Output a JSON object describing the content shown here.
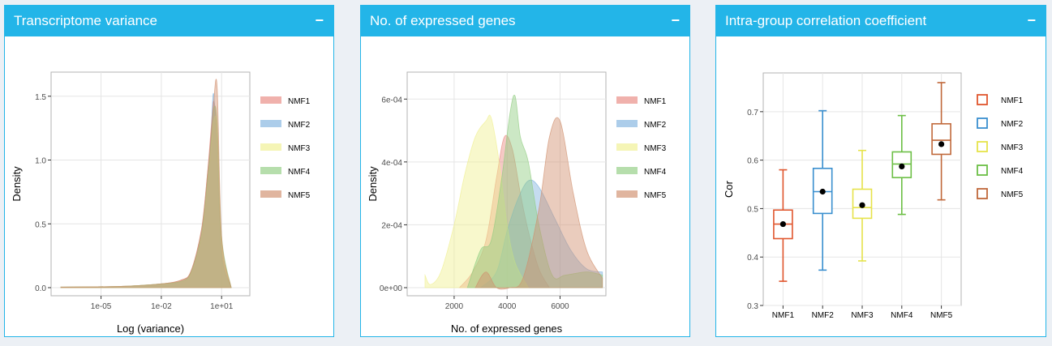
{
  "panels": [
    {
      "title": "Transcriptome variance",
      "collapse_label": "−"
    },
    {
      "title": "No. of expressed genes",
      "collapse_label": "−"
    },
    {
      "title": "Intra-group correlation coefficient",
      "collapse_label": "−"
    }
  ],
  "colors": {
    "header": "#23b5e8",
    "NMF1": "#e8877f",
    "NMF2": "#7fb2de",
    "NMF3": "#f0ef8f",
    "NMF4": "#8fcc7f",
    "NMF5": "#d08e6c",
    "box_NMF1": "#e0562e",
    "box_NMF2": "#3a8fcf",
    "box_NMF3": "#e6e34a",
    "box_NMF4": "#6cbf45",
    "box_NMF5": "#c0683a"
  },
  "chart_data": [
    {
      "type": "area",
      "xlabel": "Log (variance)",
      "ylabel": "Density",
      "x_scale": "log10",
      "xlim": [
        1e-07,
        100
      ],
      "ylim": [
        0,
        1.6
      ],
      "x_ticks": [
        "1e-05",
        "1e-02",
        "1e+01"
      ],
      "x_tick_values": [
        1e-05,
        0.01,
        10
      ],
      "y_ticks": [
        "0.0",
        "0.5",
        "1.0",
        "1.5"
      ],
      "y_tick_values": [
        0,
        0.5,
        1.0,
        1.5
      ],
      "legend": [
        "NMF1",
        "NMF2",
        "NMF3",
        "NMF4",
        "NMF5"
      ],
      "legend_position": "right",
      "series": [
        {
          "name": "NMF1",
          "x": [
            1e-07,
            0.0001,
            0.01,
            0.1,
            0.3,
            1,
            2,
            3,
            4,
            6,
            10,
            30
          ],
          "y": [
            0.005,
            0.01,
            0.03,
            0.06,
            0.13,
            0.45,
            0.9,
            1.25,
            1.46,
            1.2,
            0.3,
            0.0
          ]
        },
        {
          "name": "NMF2",
          "x": [
            1e-07,
            0.0001,
            0.01,
            0.1,
            0.3,
            1,
            2,
            3,
            4,
            6,
            10,
            30
          ],
          "y": [
            0.005,
            0.01,
            0.03,
            0.05,
            0.12,
            0.42,
            0.85,
            1.2,
            1.52,
            1.0,
            0.25,
            0.0
          ]
        },
        {
          "name": "NMF3",
          "x": [
            1e-07,
            0.0001,
            0.01,
            0.1,
            0.3,
            1,
            2,
            3,
            4,
            6,
            10,
            30
          ],
          "y": [
            0.005,
            0.01,
            0.03,
            0.05,
            0.11,
            0.4,
            0.8,
            1.1,
            1.3,
            1.25,
            0.35,
            0.0
          ]
        },
        {
          "name": "NMF4",
          "x": [
            1e-07,
            0.0001,
            0.01,
            0.1,
            0.3,
            1,
            2,
            3,
            4,
            6,
            10,
            30
          ],
          "y": [
            0.005,
            0.01,
            0.03,
            0.05,
            0.12,
            0.42,
            0.85,
            1.15,
            1.4,
            1.3,
            0.4,
            0.0
          ]
        },
        {
          "name": "NMF5",
          "x": [
            1e-07,
            0.0001,
            0.01,
            0.1,
            0.3,
            1,
            2,
            3,
            4,
            6,
            10,
            30
          ],
          "y": [
            0.005,
            0.01,
            0.03,
            0.06,
            0.13,
            0.46,
            0.9,
            1.2,
            1.45,
            1.57,
            0.4,
            0.0
          ]
        }
      ]
    },
    {
      "type": "area",
      "xlabel": "No. of expressed genes",
      "ylabel": "Density",
      "xlim": [
        900,
        7700
      ],
      "ylim": [
        0,
        0.00066
      ],
      "x_ticks": [
        "2000",
        "4000",
        "6000"
      ],
      "x_tick_values": [
        2000,
        4000,
        6000
      ],
      "y_ticks": [
        "0e+00",
        "2e-04",
        "4e-04",
        "6e-04"
      ],
      "y_tick_values": [
        0,
        0.0002,
        0.0004,
        0.0006
      ],
      "legend": [
        "NMF1",
        "NMF2",
        "NMF3",
        "NMF4",
        "NMF5"
      ],
      "legend_position": "right",
      "series": [
        {
          "name": "NMF1",
          "x": [
            2200,
            2700,
            3200,
            3600,
            3900,
            4200,
            4500,
            4800,
            5200,
            5600
          ],
          "y": [
            0,
            5e-05,
            0.00015,
            0.00035,
            0.00048,
            0.00044,
            0.0003,
            0.00018,
            6e-05,
            0
          ]
        },
        {
          "name": "NMF2",
          "x": [
            3000,
            3600,
            4000,
            4400,
            4800,
            5200,
            5800,
            6400,
            7000,
            7600
          ],
          "y": [
            0,
            5e-05,
            0.00018,
            0.00028,
            0.00034,
            0.00032,
            0.00022,
            0.00012,
            6e-05,
            5e-05
          ]
        },
        {
          "name": "NMF3",
          "x": [
            900,
            1100,
            1500,
            2000,
            2400,
            2800,
            3200,
            3400,
            3700,
            4000,
            4300,
            4800
          ],
          "y": [
            4e-05,
            1e-05,
            5e-05,
            0.0002,
            0.00036,
            0.00048,
            0.00053,
            0.00054,
            0.0004,
            0.0002,
            8e-05,
            0
          ]
        },
        {
          "name": "NMF4",
          "x": [
            2500,
            3000,
            3400,
            3800,
            4100,
            4300,
            4500,
            4800,
            5200,
            5700,
            6200,
            7000,
            7600
          ],
          "y": [
            0,
            0.00012,
            0.00015,
            0.00035,
            0.00055,
            0.00061,
            0.00048,
            0.0004,
            0.0002,
            4e-05,
            4e-05,
            5e-05,
            4e-05
          ]
        },
        {
          "name": "NMF5",
          "x": [
            2800,
            3200,
            3600,
            4100,
            4600,
            5200,
            5600,
            6000,
            6500,
            7000,
            7600
          ],
          "y": [
            0,
            5e-05,
            0,
            0,
            3e-05,
            0.00025,
            0.00048,
            0.00053,
            0.0003,
            0.00012,
            3e-05
          ]
        }
      ]
    },
    {
      "type": "box",
      "xlabel": "",
      "ylabel": "Cor",
      "ylim": [
        0.3,
        0.78
      ],
      "y_ticks": [
        "0.3",
        "0.4",
        "0.5",
        "0.6",
        "0.7"
      ],
      "y_tick_values": [
        0.3,
        0.4,
        0.5,
        0.6,
        0.7
      ],
      "categories": [
        "NMF1",
        "NMF2",
        "NMF3",
        "NMF4",
        "NMF5"
      ],
      "legend": [
        "NMF1",
        "NMF2",
        "NMF3",
        "NMF4",
        "NMF5"
      ],
      "legend_position": "right",
      "series": [
        {
          "name": "NMF1",
          "min": 0.35,
          "q1": 0.438,
          "median": 0.468,
          "q3": 0.497,
          "max": 0.58,
          "mean": 0.468
        },
        {
          "name": "NMF2",
          "min": 0.373,
          "q1": 0.49,
          "median": 0.535,
          "q3": 0.583,
          "max": 0.702,
          "mean": 0.535
        },
        {
          "name": "NMF3",
          "min": 0.392,
          "q1": 0.48,
          "median": 0.502,
          "q3": 0.54,
          "max": 0.62,
          "mean": 0.507
        },
        {
          "name": "NMF4",
          "min": 0.488,
          "q1": 0.564,
          "median": 0.592,
          "q3": 0.617,
          "max": 0.692,
          "mean": 0.587
        },
        {
          "name": "NMF5",
          "min": 0.518,
          "q1": 0.612,
          "median": 0.641,
          "q3": 0.675,
          "max": 0.76,
          "mean": 0.633
        }
      ]
    }
  ]
}
